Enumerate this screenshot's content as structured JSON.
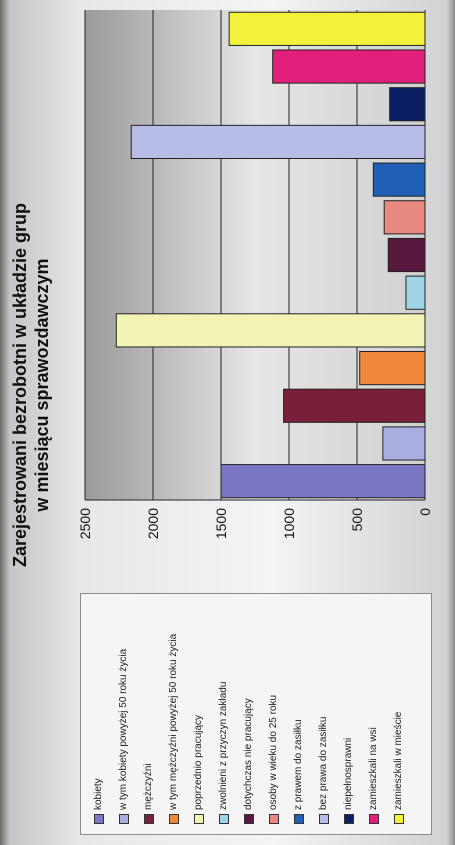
{
  "chart_data": {
    "type": "bar",
    "title": "Zarejestrowani bezrobotni w układzie grup w miesiącu sprawozdawczym",
    "title_lines": [
      "Zarejestrowani bezrobotni w układzie grup",
      "w miesiącu sprawozdawczym"
    ],
    "ylim": [
      0,
      2500
    ],
    "y_ticks": [
      "0",
      "500",
      "1000",
      "1500",
      "2000",
      "2500"
    ],
    "grid": true,
    "legend_position": "left",
    "orientation": "horizontal bars, page rotated",
    "series": [
      {
        "name": "kobiety",
        "value": 1500,
        "color": "#7b76c4"
      },
      {
        "name": "w tym kobiety powyżej 50 roku życia",
        "value": 310,
        "color": "#a9aee0"
      },
      {
        "name": "mężczyźni",
        "value": 1040,
        "color": "#7a1f3a"
      },
      {
        "name": "w tym mężczyźni powyżej 50 roku życia",
        "value": 480,
        "color": "#f0883a"
      },
      {
        "name": "poprzednio pracujący",
        "value": 2270,
        "color": "#f2f4b6"
      },
      {
        "name": "zwolnieni z przyczyn zakładu",
        "value": 140,
        "color": "#9fd3e6"
      },
      {
        "name": "dotychczas nie pracujący",
        "value": 270,
        "color": "#5a1840"
      },
      {
        "name": "osoby w wieku do 25 roku",
        "value": 300,
        "color": "#e88a80"
      },
      {
        "name": "z prawem do zasiłku",
        "value": 380,
        "color": "#1f5fb5"
      },
      {
        "name": "bez prawa do zasiłku",
        "value": 2160,
        "color": "#b8bde8"
      },
      {
        "name": "niepełnosprawni",
        "value": 260,
        "color": "#0c1f63"
      },
      {
        "name": "zamieszkali na wsi",
        "value": 1120,
        "color": "#e0207a"
      },
      {
        "name": "zamieszkali w mieście",
        "value": 1440,
        "color": "#f2f23a"
      }
    ]
  }
}
